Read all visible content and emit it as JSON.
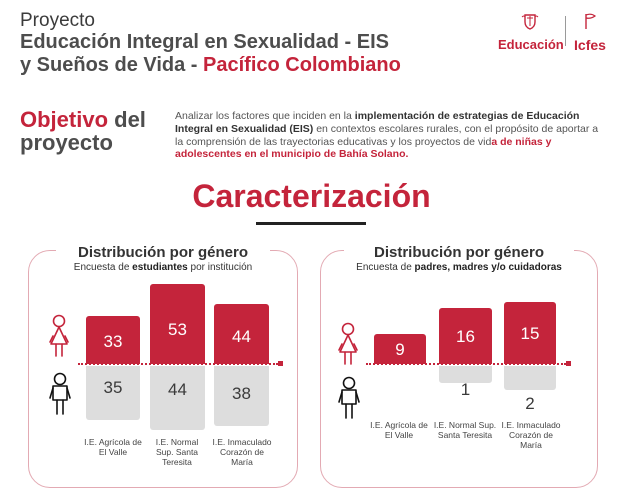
{
  "header": {
    "line1": "Proyecto",
    "line2": "Educación Integral en Sexualidad - EIS",
    "line3_a": "y Sueños de Vida - ",
    "line3_b": "Pacífico Colombiano"
  },
  "logos": {
    "education": "Educación",
    "icfes": "Icfes"
  },
  "objective": {
    "title_a": "Objetivo",
    "title_b": " del",
    "title_c": "proyecto",
    "t1": "Analizar los factores que inciden en la ",
    "t2": "implementación de estrategias de Educación Integral en Sexualidad (EIS)",
    "t3": " en contextos escolares rurales, con el propósito de aportar a la comprensión de las trayectorias educativas y los proyectos de vid",
    "t4": "a de niñas y adolescentes en el municipio de Bahía Solano."
  },
  "section": {
    "title": "Caracterización"
  },
  "panel1": {
    "title": "Distribución por género",
    "sub_a": "Encuesta de ",
    "sub_b": "estudiantes",
    "sub_c": " por institución",
    "categories": [
      "I.E. Agrícola de El Valle",
      "I.E. Normal Sup. Santa Teresita",
      "I.E. Inmaculado Corazón de María"
    ],
    "female": [
      "33",
      "53",
      "44"
    ],
    "male": [
      "35",
      "44",
      "38"
    ]
  },
  "panel2": {
    "title": "Distribución por género",
    "sub_a": "Encuesta de ",
    "sub_b": "padres, madres y/o cuidadoras",
    "categories": [
      "I.E. Agrícola de El Valle",
      "I.E. Normal Sup. Santa Teresita",
      "I.E. Inmaculado Corazón de María"
    ],
    "female": [
      "9",
      "16",
      "15"
    ],
    "male": [
      "",
      "1",
      "2"
    ]
  },
  "colors": {
    "accent": "#c4243b",
    "gray_bar": "#dddddd",
    "text": "#4a4a4a"
  },
  "icons": [
    "crest-icon",
    "flag-icon",
    "female-icon",
    "male-icon"
  ]
}
